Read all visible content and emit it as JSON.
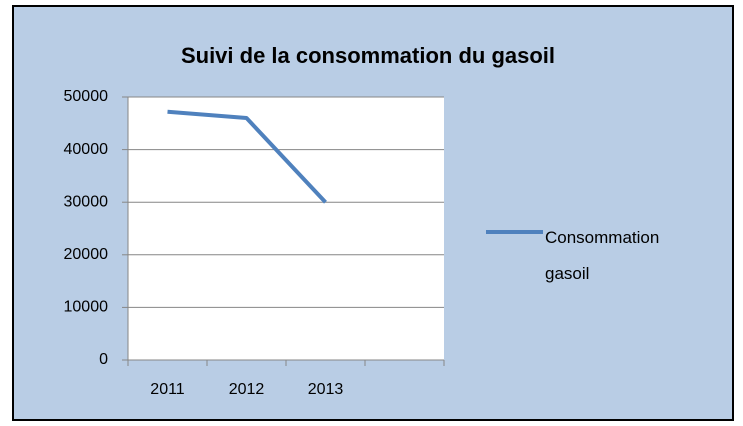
{
  "chart_data": {
    "type": "line",
    "title": "Suivi de la consommation du gasoil",
    "categories": [
      "2011",
      "2012",
      "2013",
      null
    ],
    "series": [
      {
        "name": "Consommation gasoil",
        "color": "#4f81bd",
        "values": [
          47200,
          46000,
          30000,
          null
        ]
      }
    ],
    "ylim": [
      0,
      50000
    ],
    "yticks": [
      0,
      10000,
      20000,
      30000,
      40000,
      50000
    ],
    "grid": true,
    "legend": "right"
  }
}
